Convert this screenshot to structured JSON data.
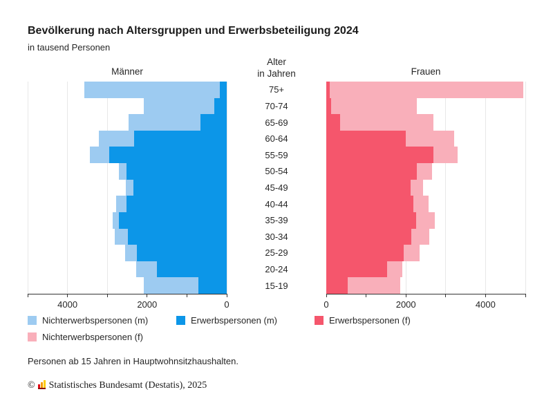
{
  "header": {
    "title": "Bevölkerung nach Altersgruppen und Erwerbsbeteiligung 2024",
    "subtitle": "in tausend Personen"
  },
  "chart_data": {
    "type": "bar",
    "variant": "population-pyramid, horizontal stacked bars",
    "unit": "tausend Personen",
    "age_axis_title_line1": "Alter",
    "age_axis_title_line2": "in Jahren",
    "categories": [
      "75+",
      "70-74",
      "65-69",
      "60-64",
      "55-59",
      "50-54",
      "45-49",
      "40-44",
      "35-39",
      "30-34",
      "25-29",
      "20-24",
      "15-19"
    ],
    "left": {
      "title": "Männer",
      "direction": "values increase right-to-left, zero at right edge",
      "xlim": [
        0,
        5000
      ],
      "tick_step": 1000,
      "tick_labels": [
        {
          "value": 4000,
          "label": "4000"
        },
        {
          "value": 2000,
          "label": "2000"
        },
        {
          "value": 0,
          "label": "0"
        }
      ],
      "series": [
        {
          "name": "Erwerbspersonen (m)",
          "color": "#0c96e8",
          "stack_position": "inner",
          "values": [
            170,
            310,
            660,
            2330,
            2960,
            2520,
            2350,
            2520,
            2700,
            2490,
            2260,
            1760,
            710
          ]
        },
        {
          "name": "Nichterwerbspersonen (m)",
          "color": "#9dcbf1",
          "stack_position": "outer",
          "values": [
            3410,
            1780,
            1810,
            890,
            480,
            190,
            190,
            260,
            170,
            330,
            300,
            520,
            1380
          ]
        }
      ]
    },
    "right": {
      "title": "Frauen",
      "direction": "values increase left-to-right, zero at left edge",
      "xlim": [
        0,
        5000
      ],
      "tick_step": 1000,
      "tick_labels": [
        {
          "value": 0,
          "label": "0"
        },
        {
          "value": 2000,
          "label": "2000"
        },
        {
          "value": 4000,
          "label": "4000"
        }
      ],
      "series": [
        {
          "name": "Erwerbspersonen (f)",
          "color": "#f5566c",
          "stack_position": "inner",
          "values": [
            80,
            130,
            340,
            1990,
            2690,
            2280,
            2110,
            2190,
            2260,
            2140,
            1940,
            1530,
            530
          ]
        },
        {
          "name": "Nichterwerbspersonen (f)",
          "color": "#f9afba",
          "stack_position": "outer",
          "values": [
            4870,
            2150,
            2350,
            1220,
            610,
            380,
            320,
            380,
            460,
            450,
            400,
            380,
            1320
          ]
        }
      ]
    },
    "grid": "vertical gridlines every 1000, light gray",
    "legend_position": "below chart"
  },
  "legend": {
    "items": [
      {
        "label": "Nichterwerbspersonen (m)",
        "color": "#9dcbf1"
      },
      {
        "label": "Erwerbspersonen (m)",
        "color": "#0c96e8"
      },
      {
        "label": "Erwerbspersonen (f)",
        "color": "#f5566c"
      },
      {
        "label": "Nichterwerbspersonen (f)",
        "color": "#f9afba"
      }
    ]
  },
  "footnote": "Personen ab 15 Jahren in Hauptwohnsitzhaushalten.",
  "copyright": {
    "symbol": "©",
    "text": "Statistisches Bundesamt (Destatis), 2025",
    "brand_icon_colors": [
      "#e30613",
      "#f59c00",
      "#ffcc00"
    ]
  },
  "colors": {
    "background": "#ffffff",
    "gridline": "#e7e7e7",
    "axis": "#333333",
    "text": "#262626"
  }
}
